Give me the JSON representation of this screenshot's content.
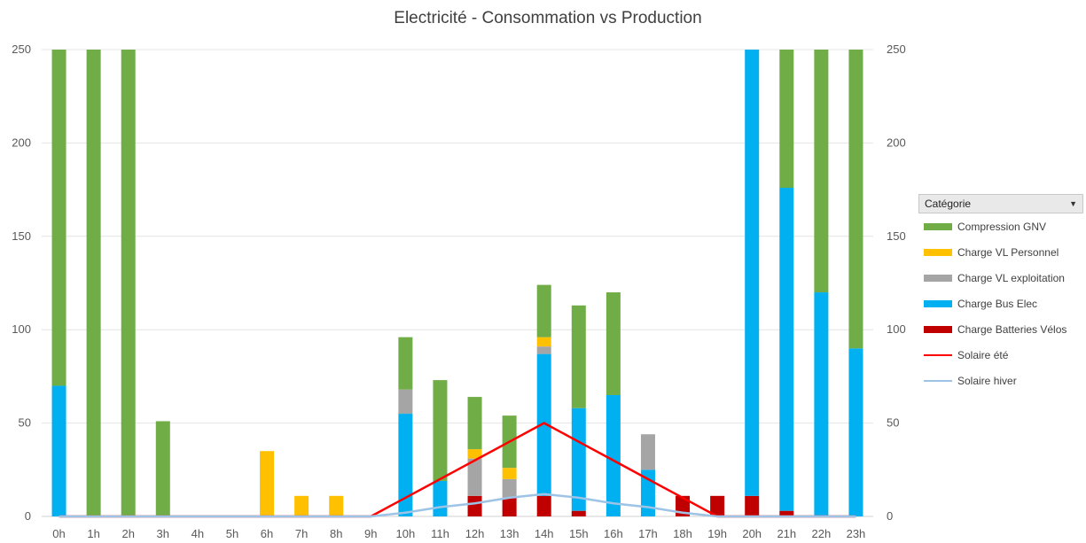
{
  "chart_data": {
    "type": "bar",
    "title": "Electricité - Consommation vs Production",
    "categories": [
      "0h",
      "1h",
      "2h",
      "3h",
      "4h",
      "5h",
      "6h",
      "7h",
      "8h",
      "9h",
      "10h",
      "11h",
      "12h",
      "13h",
      "14h",
      "15h",
      "16h",
      "17h",
      "18h",
      "19h",
      "20h",
      "21h",
      "22h",
      "23h"
    ],
    "ylim": [
      0,
      250
    ],
    "yticks": [
      0,
      50,
      100,
      150,
      200,
      250
    ],
    "grid": true,
    "legend_position": "right",
    "legend_title": "Catégorie",
    "series": [
      {
        "name": "Charge Batteries Vélos",
        "kind": "bar",
        "color": "#c00000",
        "values": [
          0,
          0,
          0,
          0,
          0,
          0,
          0,
          0,
          0,
          0,
          0,
          0,
          11,
          10,
          11,
          3,
          0,
          0,
          11,
          11,
          11,
          3,
          0,
          0
        ]
      },
      {
        "name": "Charge Bus Elec",
        "kind": "bar",
        "color": "#00b0f0",
        "values": [
          70,
          0,
          0,
          0,
          0,
          0,
          0,
          0,
          0,
          0,
          55,
          19,
          0,
          0,
          76,
          55,
          65,
          25,
          0,
          0,
          239,
          173,
          120,
          90
        ]
      },
      {
        "name": "Charge VL exploitation",
        "kind": "bar",
        "color": "#a5a5a5",
        "values": [
          0,
          0,
          0,
          0,
          0,
          0,
          0,
          0,
          0,
          0,
          13,
          0,
          20,
          10,
          4,
          0,
          0,
          19,
          0,
          0,
          0,
          0,
          0,
          0
        ]
      },
      {
        "name": "Charge VL Personnel",
        "kind": "bar",
        "color": "#ffc000",
        "values": [
          0,
          0,
          0,
          0,
          0,
          0,
          35,
          11,
          11,
          0,
          0,
          0,
          5,
          6,
          5,
          0,
          0,
          0,
          0,
          0,
          0,
          0,
          0,
          0
        ]
      },
      {
        "name": "Compression GNV",
        "kind": "bar",
        "color": "#70ad47",
        "values": [
          180,
          250,
          250,
          51,
          0,
          0,
          0,
          0,
          0,
          0,
          28,
          54,
          28,
          28,
          28,
          55,
          55,
          0,
          0,
          0,
          0,
          74,
          130,
          160
        ]
      },
      {
        "name": "Solaire été",
        "kind": "line",
        "color": "#ff0000",
        "values": [
          0,
          0,
          0,
          0,
          0,
          0,
          0,
          0,
          0,
          0,
          10,
          20,
          30,
          40,
          50,
          40,
          30,
          20,
          10,
          0,
          0,
          0,
          0,
          0
        ]
      },
      {
        "name": "Solaire hiver",
        "kind": "line",
        "color": "#9dc3e6",
        "values": [
          0,
          0,
          0,
          0,
          0,
          0,
          0,
          0,
          0,
          0,
          2,
          5,
          7,
          10,
          12,
          10,
          7,
          5,
          2,
          0,
          0,
          0,
          0,
          0
        ]
      }
    ],
    "legend_order": [
      "Compression GNV",
      "Charge VL Personnel",
      "Charge VL exploitation",
      "Charge Bus Elec",
      "Charge Batteries Vélos",
      "Solaire été",
      "Solaire hiver"
    ]
  }
}
